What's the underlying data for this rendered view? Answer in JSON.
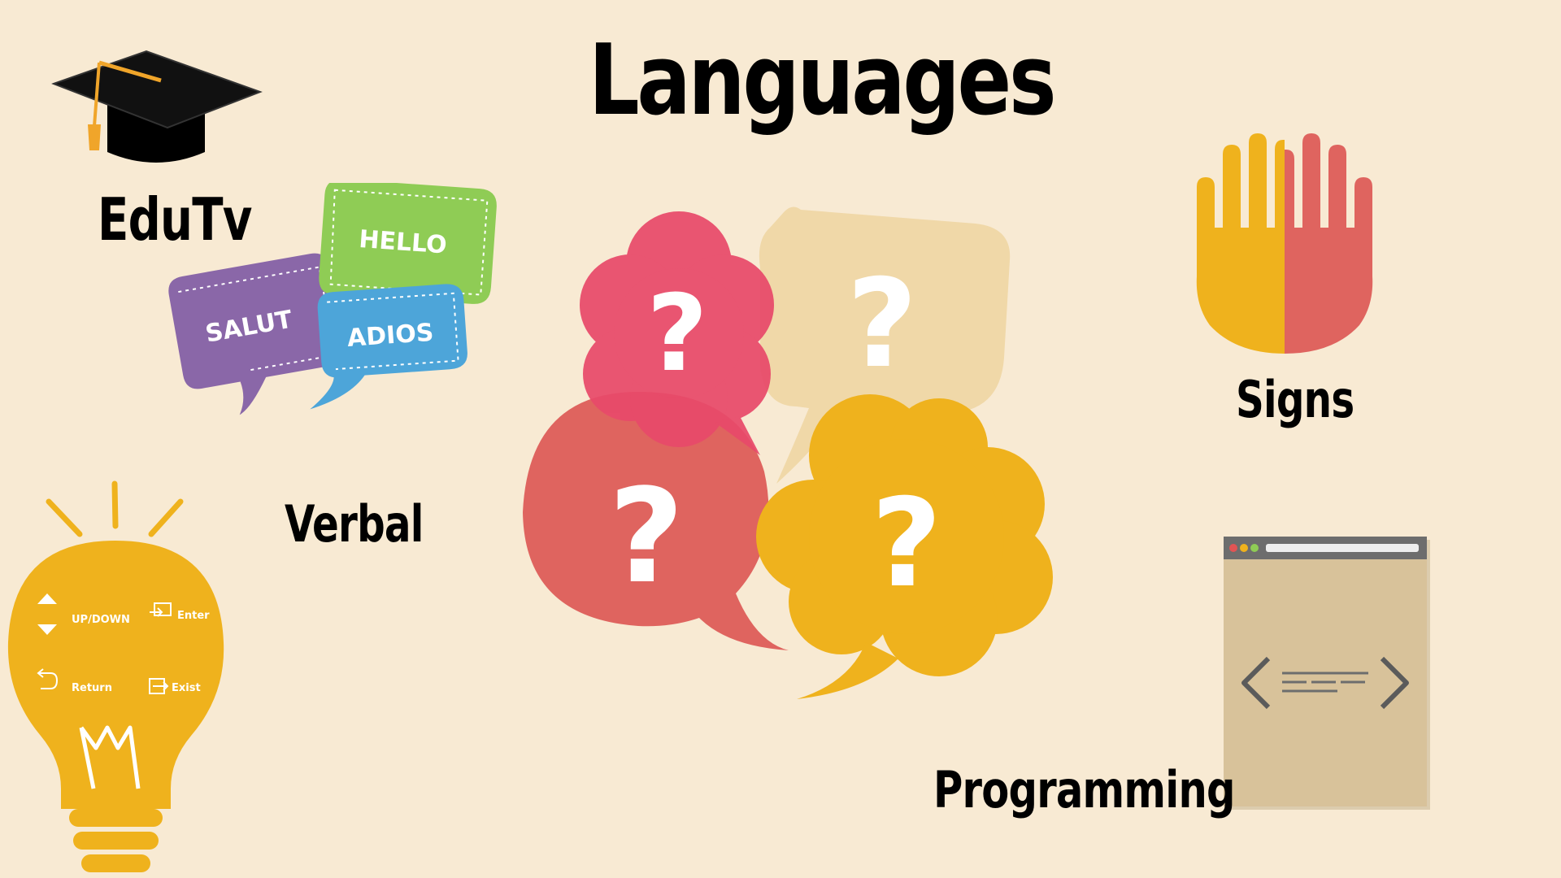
{
  "title": "Languages",
  "labels": {
    "edutv": "EduTv",
    "verbal": "Verbal",
    "signs": "Signs",
    "programming": "Programming"
  },
  "bubbles": {
    "hello": "HELLO",
    "salut": "SALUT",
    "adios": "ADIOS",
    "question_mark": "?"
  },
  "remote_controls": {
    "updown": "UP/DOWN",
    "enter": "Enter",
    "return": "Return",
    "exist": "Exist"
  },
  "colors": {
    "background": "#f8ead3",
    "pink": "#e84a6a",
    "salmon": "#df645f",
    "yellow": "#efb21d",
    "beige": "#f0d8a8",
    "purple": "#8a67a8",
    "green": "#8fcc55",
    "blue": "#4da5d9",
    "window": "#d8c29a"
  },
  "icons": [
    "graduation-cap-icon",
    "speech-bubbles-icon",
    "question-bubbles-icon",
    "hands-icon",
    "lightbulb-icon",
    "code-window-icon"
  ]
}
